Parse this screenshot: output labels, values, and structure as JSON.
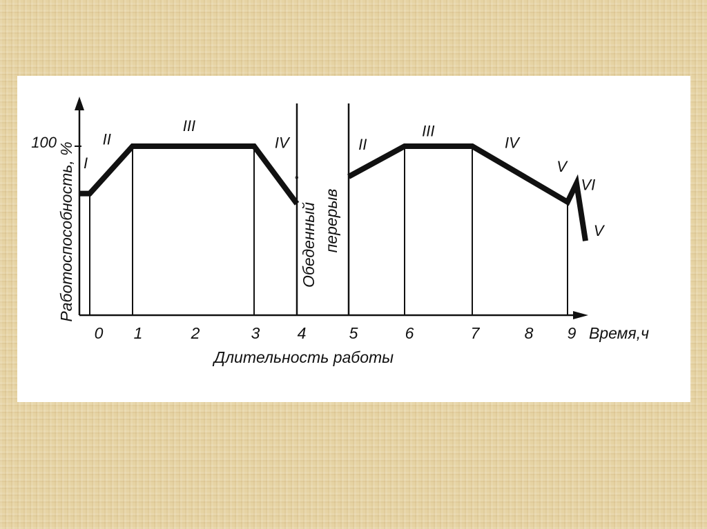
{
  "chart_data": {
    "type": "line",
    "ylabel": "Работоспособность, %",
    "xlabel": "Длительность работы",
    "x_axis_end_label": "Время,ч",
    "y_tick_labels": [
      "100"
    ],
    "x_tick_labels": [
      "0",
      "1",
      "2",
      "3",
      "4",
      "5",
      "6",
      "7",
      "8",
      "9"
    ],
    "ylim": [
      0,
      100
    ],
    "grid": false,
    "break_label": [
      "Обеденный",
      "перерыв"
    ],
    "break_marker": "°",
    "series": [
      {
        "segment": "before-lunch",
        "x": [
          -0.25,
          0,
          1,
          3,
          4
        ],
        "y": [
          72,
          72,
          100,
          100,
          66
        ]
      },
      {
        "segment": "after-lunch",
        "x": [
          5,
          6,
          7,
          9,
          9.2,
          9.45
        ],
        "y": [
          82,
          100,
          100,
          67,
          78,
          44
        ]
      }
    ],
    "phase_boundaries": [
      0,
      1,
      3,
      6,
      7,
      9
    ],
    "phase_labels": [
      {
        "text": "I",
        "x": -0.1,
        "y": 87
      },
      {
        "text": "II",
        "x": 0.4,
        "y": 101
      },
      {
        "text": "III",
        "x": 1.9,
        "y": 109
      },
      {
        "text": "IV",
        "x": 3.65,
        "y": 99
      },
      {
        "text": "II",
        "x": 5.25,
        "y": 98
      },
      {
        "text": "III",
        "x": 6.35,
        "y": 106
      },
      {
        "text": "IV",
        "x": 7.7,
        "y": 99
      },
      {
        "text": "V",
        "x": 8.85,
        "y": 85
      },
      {
        "text": "VI",
        "x": 9.5,
        "y": 74
      },
      {
        "text": "V",
        "x": 9.7,
        "y": 47
      }
    ],
    "colors": {
      "line": "#111111",
      "panel": "#ffffff",
      "background": "#e6d3a3"
    }
  }
}
